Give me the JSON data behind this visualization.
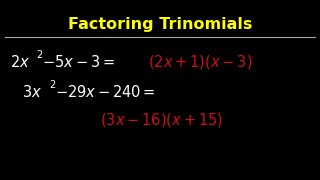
{
  "background_color": "#000000",
  "title": "Factoring Trinomials",
  "title_color": "#FFFF00",
  "title_fontsize": 11.5,
  "separator_color": "#aaaaaa",
  "white": "#ffffff",
  "red": "#cc1111",
  "fs": 10.5,
  "fs_sup": 7
}
